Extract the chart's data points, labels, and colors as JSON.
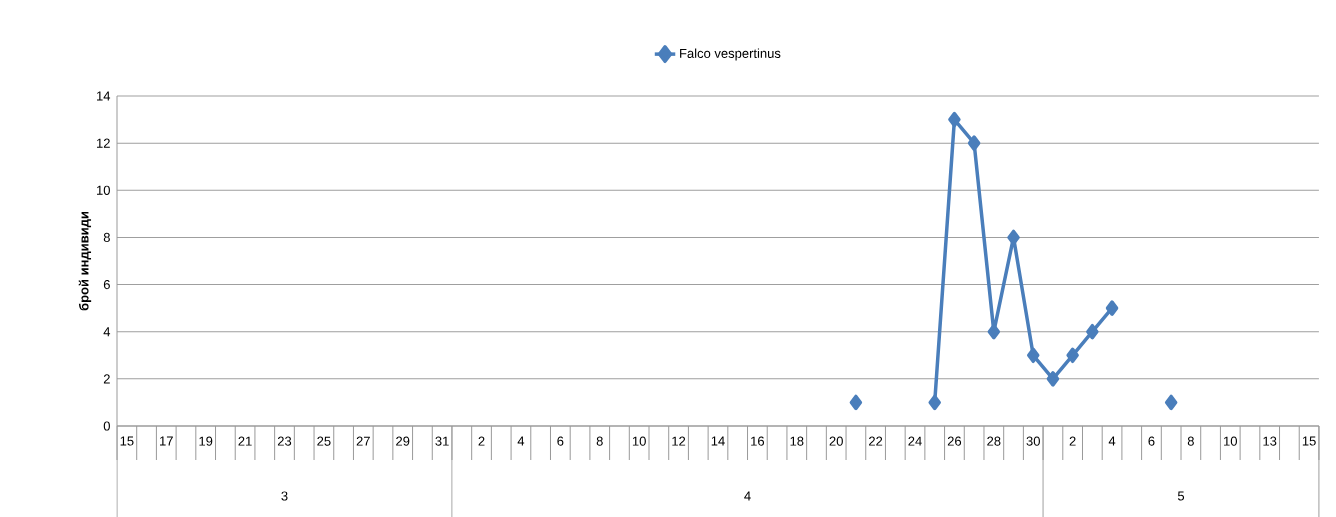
{
  "chart_data": {
    "type": "line",
    "categories": [
      "15",
      null,
      "17",
      null,
      "19",
      null,
      "21",
      null,
      "23",
      null,
      "25",
      null,
      "27",
      null,
      "29",
      null,
      "31",
      null,
      "2",
      null,
      "4",
      null,
      "6",
      null,
      "8",
      null,
      "10",
      null,
      "12",
      null,
      "14",
      null,
      "16",
      null,
      "18",
      null,
      "20",
      null,
      "22",
      null,
      "24",
      null,
      "26",
      null,
      "28",
      null,
      "30",
      null,
      "2",
      null,
      "4",
      null,
      "6",
      null,
      "8",
      null,
      "10",
      null,
      "13",
      null,
      "15"
    ],
    "annotations": [
      "3",
      "4",
      "5"
    ],
    "ylabel": "брой индивиди",
    "series": [
      {
        "name": "Falco vespertinus",
        "color": "#4a7ebb",
        "values": [
          null,
          null,
          null,
          null,
          null,
          null,
          null,
          null,
          null,
          null,
          null,
          null,
          null,
          null,
          null,
          null,
          null,
          null,
          null,
          null,
          null,
          null,
          null,
          null,
          null,
          null,
          null,
          null,
          null,
          null,
          null,
          null,
          null,
          null,
          null,
          null,
          null,
          1,
          null,
          null,
          null,
          1,
          13,
          12,
          4,
          8,
          3,
          2,
          3,
          4,
          5,
          null,
          null,
          1,
          null,
          null,
          null,
          null,
          null,
          null,
          null
        ]
      }
    ],
    "ylim": [
      0,
      14
    ],
    "yticks": [
      0,
      2,
      4,
      6,
      8,
      10,
      12,
      14
    ],
    "grid": "y",
    "legend": "top",
    "marker": "diamond",
    "line_style": "solid"
  }
}
